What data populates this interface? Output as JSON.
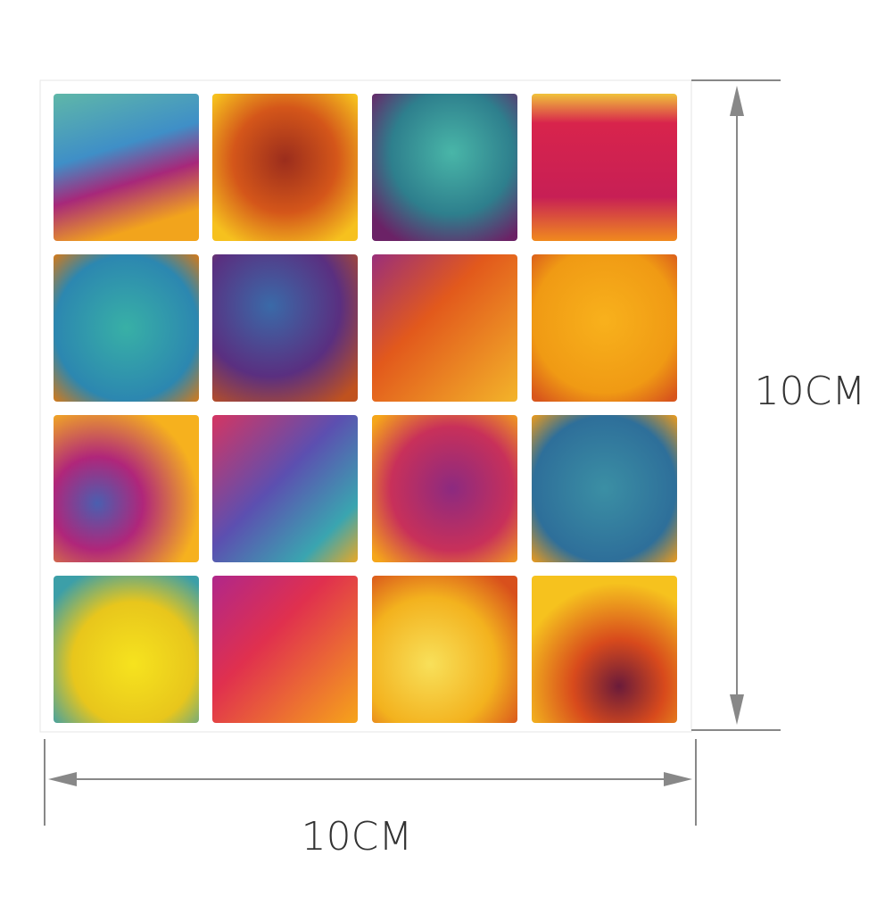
{
  "dimensions": {
    "height": "10CM",
    "width": "10CM"
  }
}
